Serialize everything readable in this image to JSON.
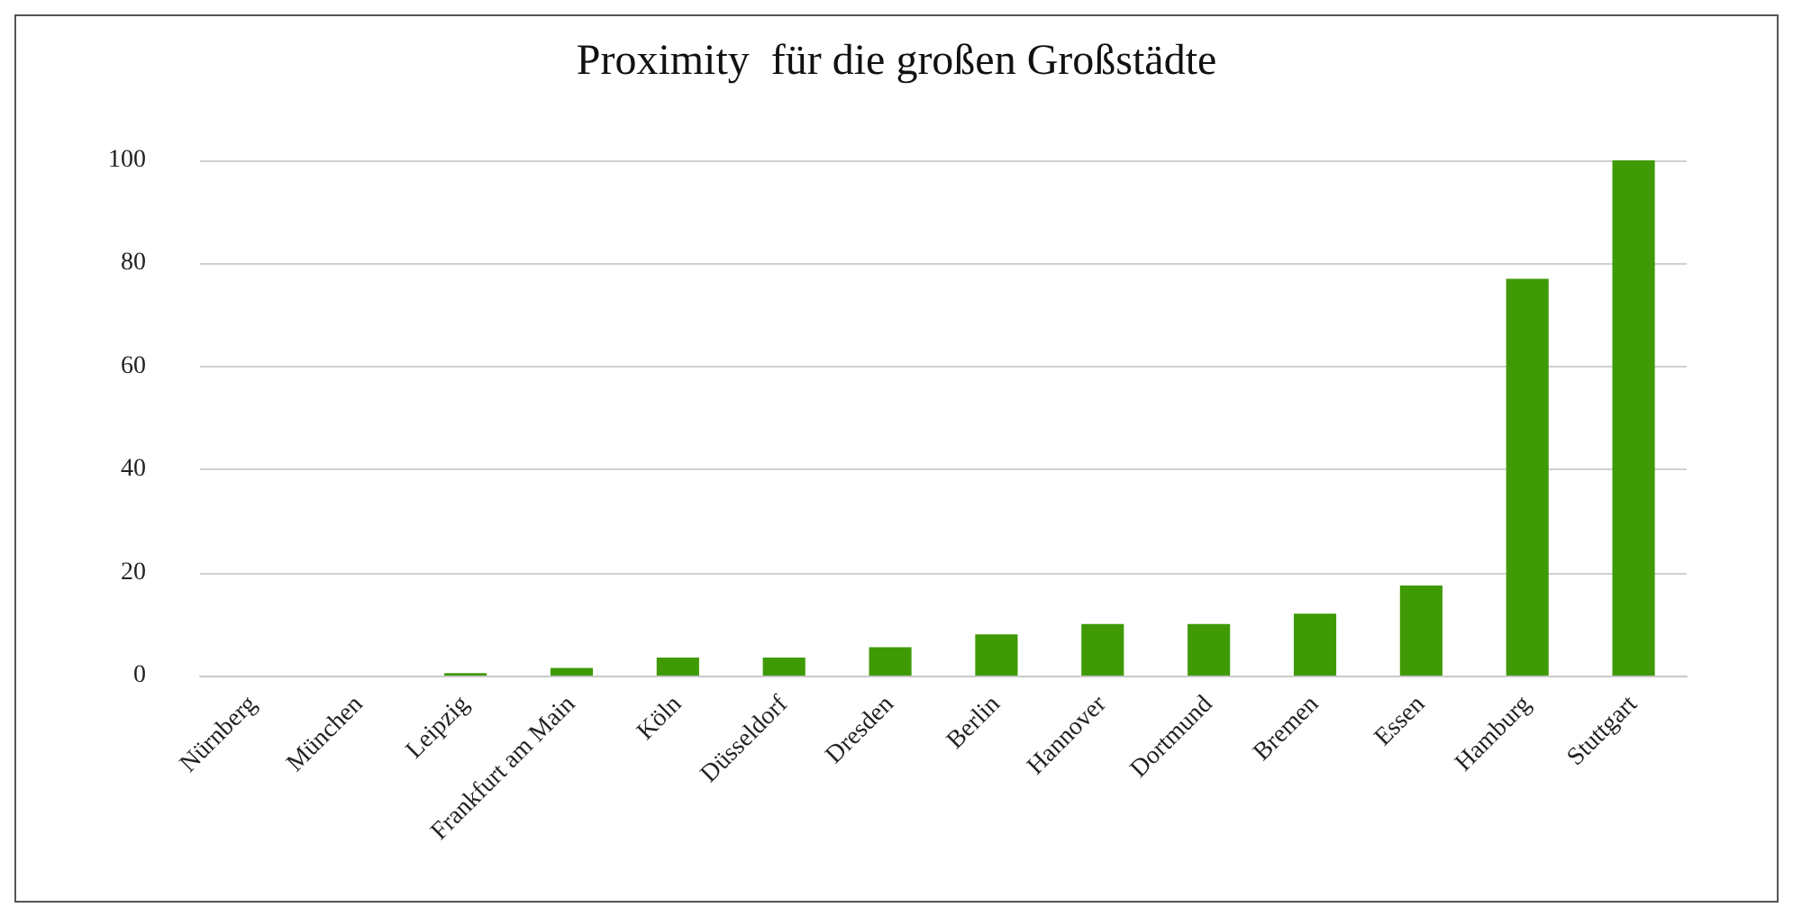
{
  "chart_data": {
    "type": "bar",
    "title": "Proximity  für die großen Großstädte",
    "categories": [
      "Nürnberg",
      "München",
      "Leipzig",
      "Frankfurt am Main",
      "Köln",
      "Düsseldorf",
      "Dresden",
      "Berlin",
      "Hannover",
      "Dortmund",
      "Bremen",
      "Essen",
      "Hamburg",
      "Stuttgart"
    ],
    "values": [
      0,
      0,
      0.5,
      1.5,
      3.5,
      3.5,
      5.5,
      8,
      10,
      10,
      12,
      17.5,
      77,
      100
    ],
    "color": "#3f9a06",
    "ylim": [
      0,
      100
    ],
    "yticks": [
      0,
      20,
      40,
      60,
      80,
      100
    ],
    "grid": "y"
  }
}
